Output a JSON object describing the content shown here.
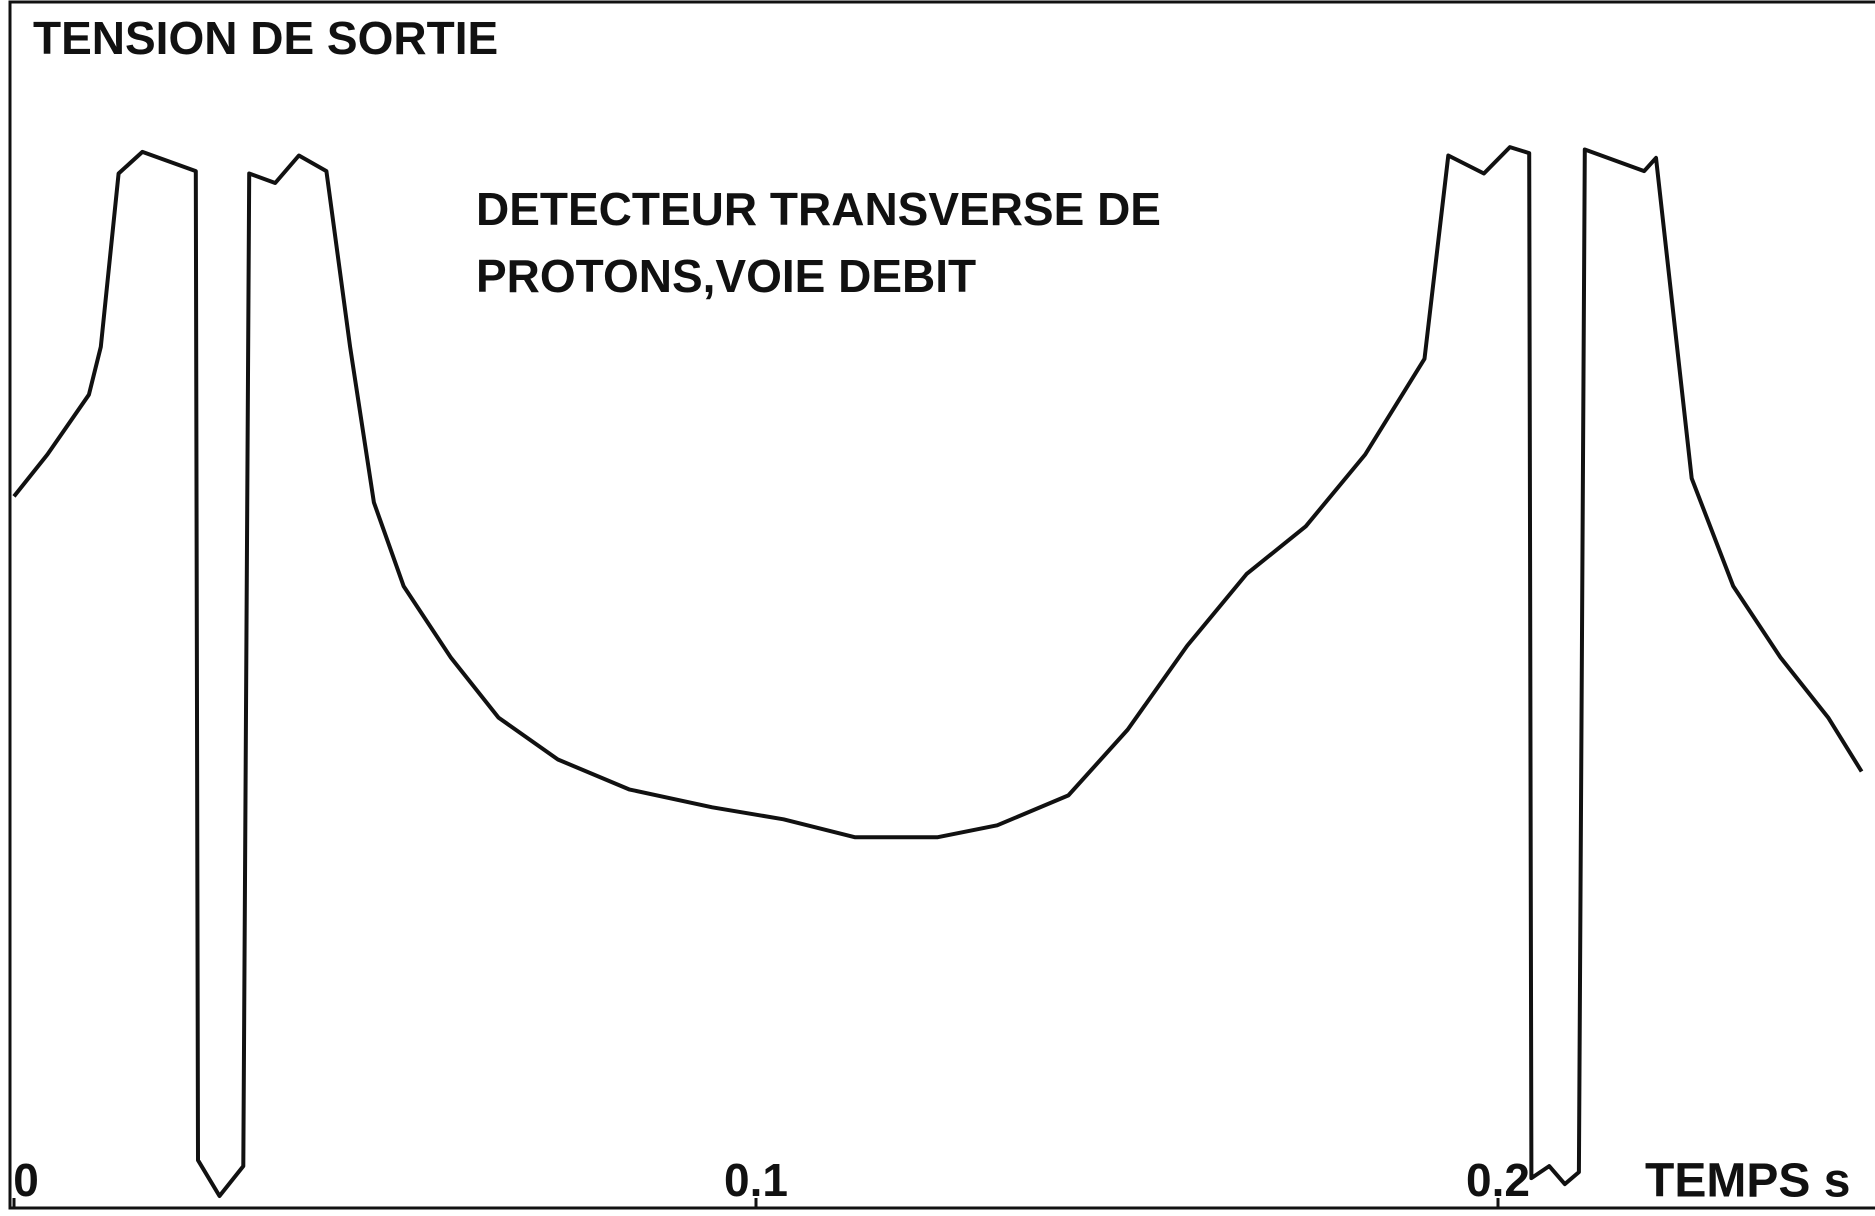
{
  "chart_data": {
    "type": "line",
    "ylabel": "TENSION DE SORTIE",
    "xlabel": "TEMPS s",
    "annotation": [
      "DETECTEUR TRANSVERSE DE",
      "PROTONS,VOIE DEBIT"
    ],
    "xlim": [
      0,
      0.25
    ],
    "xticks": [
      0,
      0.1,
      0.2
    ],
    "ylim": [
      0,
      100
    ],
    "series": [
      {
        "color": "#111111",
        "x": [
          0,
          0.0045,
          0.0101,
          0.0117,
          0.0141,
          0.0173,
          0.0245,
          0.0248,
          0.0277,
          0.0309,
          0.0317,
          0.0352,
          0.0384,
          0.0421,
          0.0453,
          0.0485,
          0.0525,
          0.0589,
          0.0653,
          0.0733,
          0.0829,
          0.0941,
          0.1037,
          0.1133,
          0.1245,
          0.1325,
          0.1421,
          0.1501,
          0.1581,
          0.1661,
          0.1741,
          0.1821,
          0.1901,
          0.1933,
          0.1981,
          0.2016,
          0.2042,
          0.2045,
          0.2069,
          0.209,
          0.2109,
          0.2117,
          0.2197,
          0.2213,
          0.2261,
          0.2317,
          0.2381,
          0.2445,
          0.249
        ],
        "values": [
          59.5,
          63,
          68,
          72,
          86.5,
          88.3,
          86.7,
          4,
          1,
          3.5,
          86.5,
          85.7,
          88,
          86.7,
          72,
          59,
          52,
          46,
          41,
          37.5,
          35,
          33.5,
          32.5,
          31,
          31,
          32,
          34.5,
          40,
          47,
          53,
          57,
          63,
          71,
          88,
          86.5,
          88.7,
          88.2,
          2.5,
          3.5,
          2,
          3,
          88.5,
          86.7,
          87.8,
          61,
          52,
          46,
          41,
          36.5
        ]
      }
    ]
  }
}
